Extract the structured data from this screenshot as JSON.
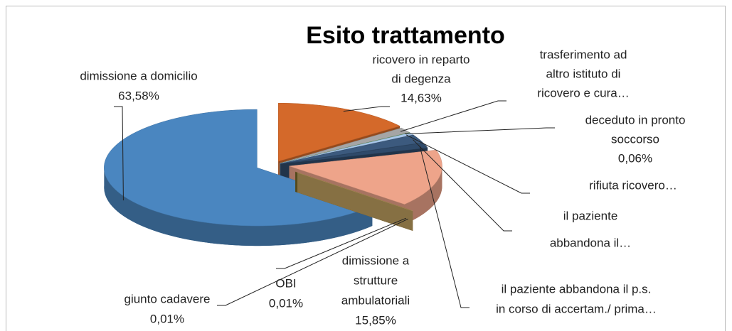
{
  "chart_data": {
    "type": "pie",
    "title": "Esito trattamento",
    "categories": [
      [
        "ricovero in reparto",
        "di degenza"
      ],
      [
        "trasferimento ad",
        "altro istituto di",
        "ricovero e cura…"
      ],
      [
        "deceduto in pronto",
        "soccorso"
      ],
      [
        "rifiuta ricovero…"
      ],
      [
        "il paziente",
        "abbandona il…"
      ],
      [
        "il paziente abbandona il p.s.",
        "in corso di accertam./ prima…"
      ],
      [
        "dimissione a",
        "strutture",
        "ambulatoriali"
      ],
      [
        "OBI"
      ],
      [
        "giunto cadavere"
      ],
      [
        "dimissione a domicilio"
      ]
    ],
    "values": [
      14.63,
      1.5,
      0.06,
      0.6,
      2.3,
      1.46,
      15.85,
      0.01,
      0.01,
      63.58
    ],
    "value_labels": [
      "14,63%",
      null,
      "0,06%",
      null,
      null,
      null,
      "15,85%",
      "0,01%",
      "0,01%",
      "63,58%"
    ],
    "colors": [
      "#d4692a",
      "#a5a5a5",
      "#4f9a3a",
      "#a9c8ea",
      "#3c5a7e",
      "#2f4a6a",
      "#eea48a",
      "#7a6a2a",
      "#c0a060",
      "#4a86c0"
    ]
  }
}
